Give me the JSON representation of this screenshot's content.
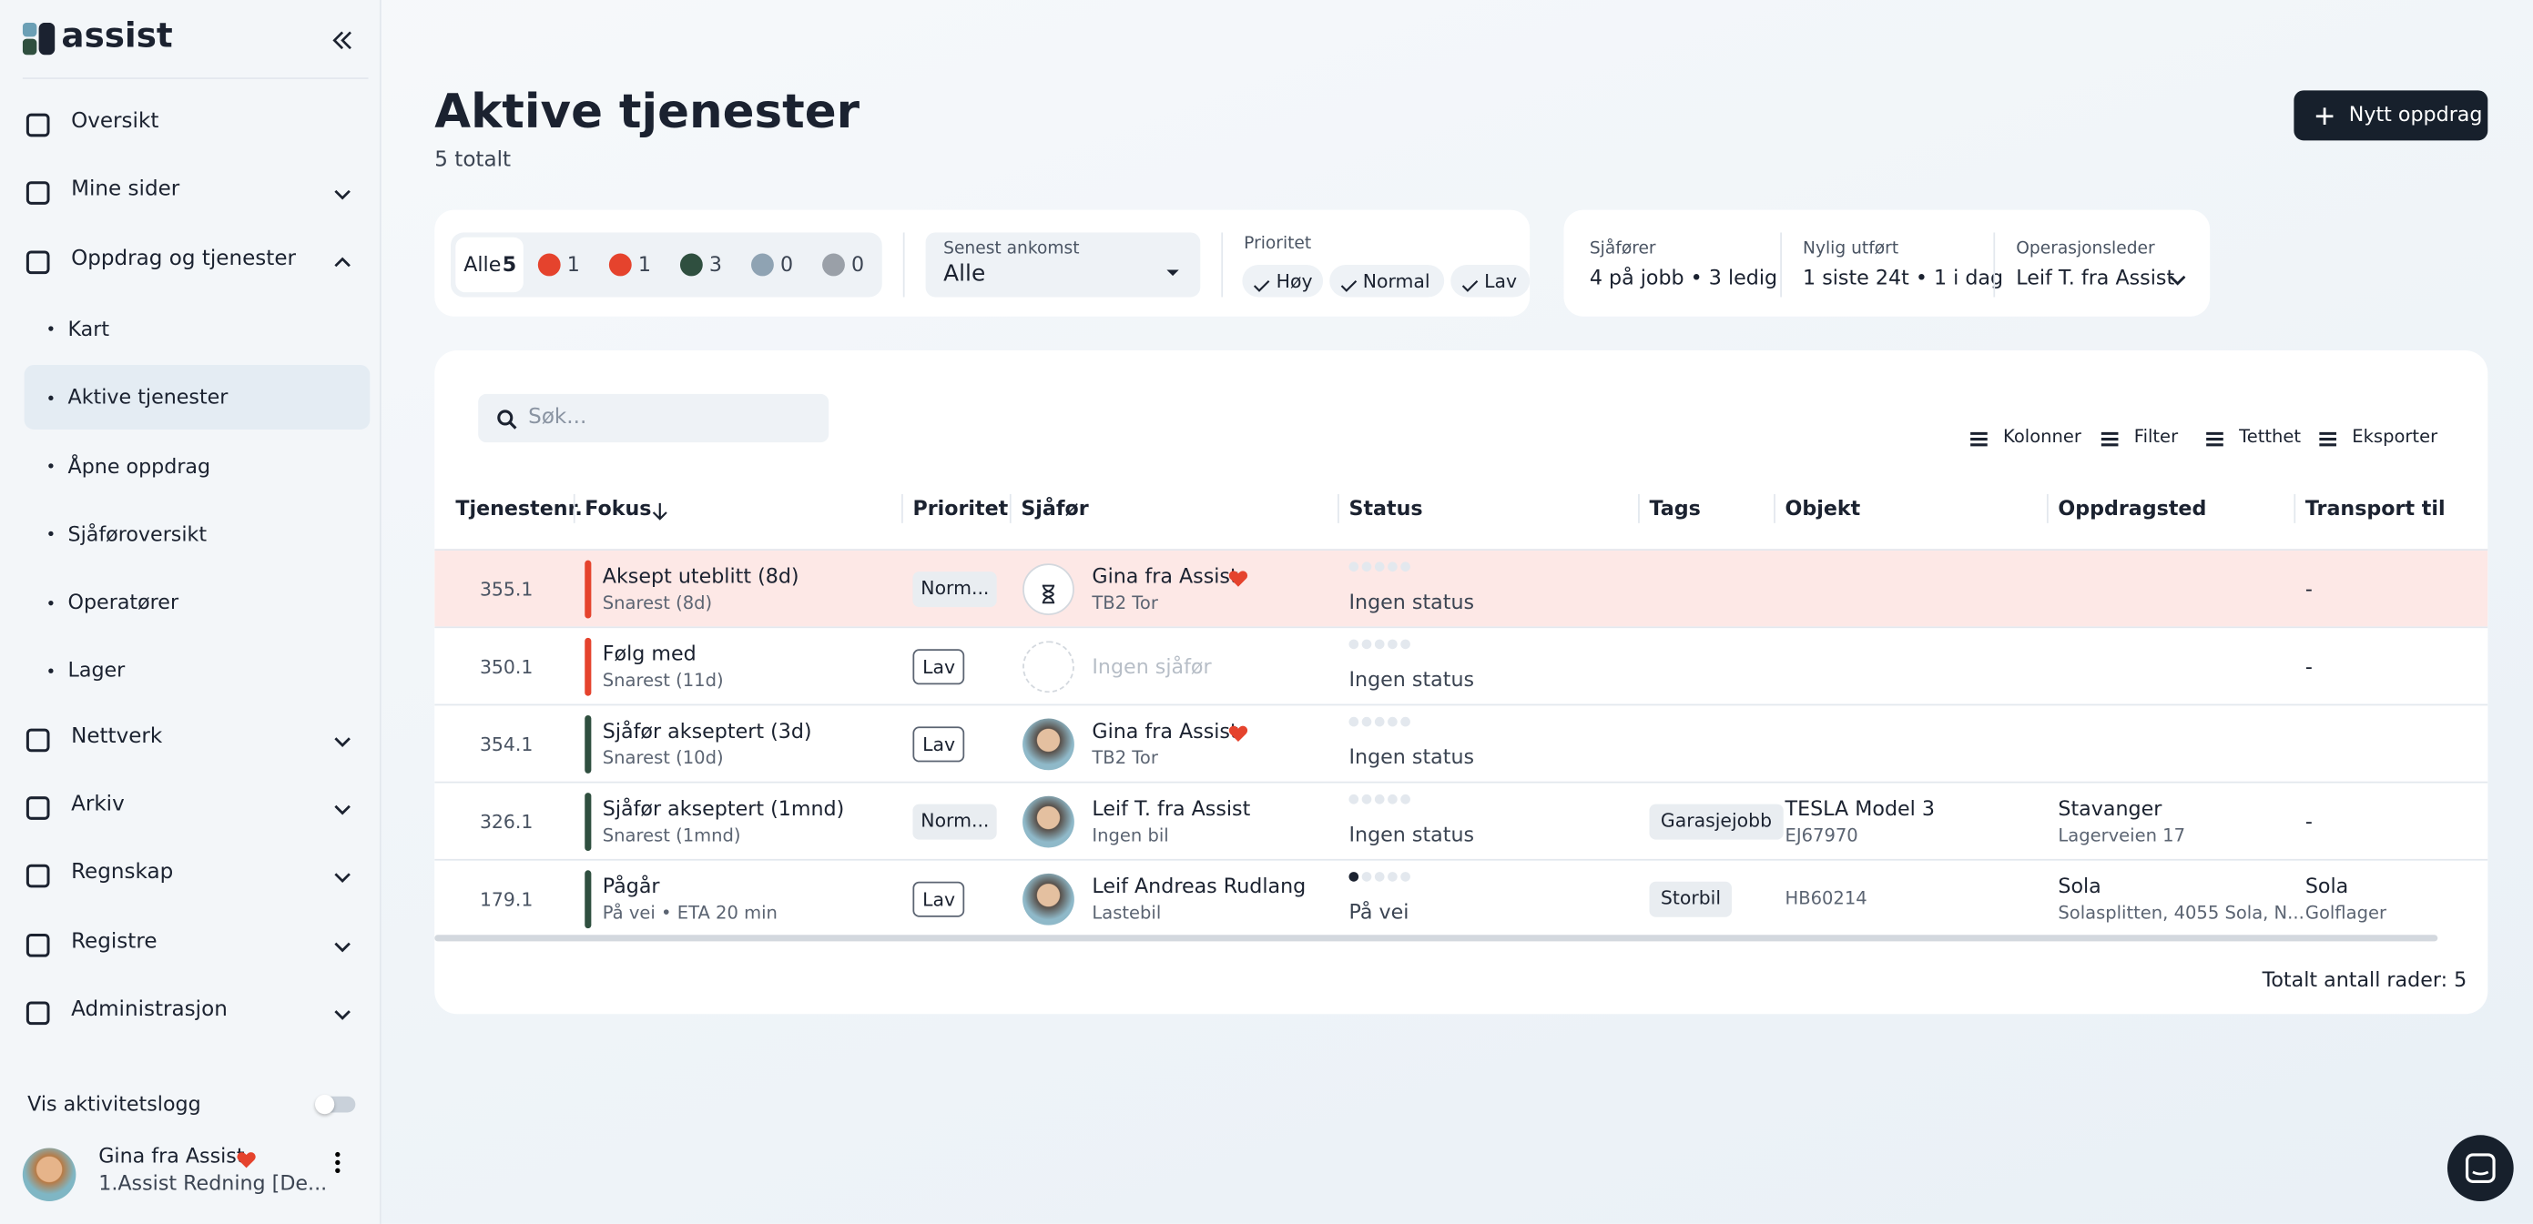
{
  "sidebar": {
    "logo": "assist",
    "nav": [
      {
        "label": "Oversikt"
      },
      {
        "label": "Mine sider",
        "expandable": true
      },
      {
        "label": "Oppdrag og tjenester",
        "expandable": true,
        "expanded": true,
        "children": [
          "Kart",
          "Aktive tjenester",
          "Åpne oppdrag",
          "Sjåføroversikt",
          "Operatører",
          "Lager"
        ],
        "active_child": 1
      },
      {
        "label": "Nettverk",
        "expandable": true
      },
      {
        "label": "Arkiv",
        "expandable": true
      },
      {
        "label": "Regnskap",
        "expandable": true
      },
      {
        "label": "Registre",
        "expandable": true
      },
      {
        "label": "Administrasjon",
        "expandable": true
      }
    ],
    "activity_log": "Vis aktivitetslogg",
    "user": {
      "name": "Gina fra Assist",
      "org": "1.Assist Redning [De..."
    }
  },
  "header": {
    "title": "Aktive tjenester",
    "subtitle": "5 totalt",
    "button": "Nytt oppdrag"
  },
  "filters": {
    "all": {
      "label": "Alle",
      "count": 5
    },
    "counts": [
      {
        "color": "#e5432d",
        "count": 1
      },
      {
        "color": "#e5432d",
        "count": 1
      },
      {
        "color": "#2f4f3f",
        "count": 3
      },
      {
        "color": "#8fa3b3",
        "count": 0
      },
      {
        "color": "#9aa0a8",
        "count": 0
      }
    ],
    "sort": {
      "label": "Senest ankomst",
      "value": "Alle"
    },
    "priority": {
      "label": "Prioritet",
      "options": [
        "Høy",
        "Normal",
        "Lav"
      ]
    }
  },
  "stats": [
    {
      "label": "Sjåfører",
      "value": "4 på jobb • 3 ledig"
    },
    {
      "label": "Nylig utført",
      "value": "1 siste 24t • 1 i dag"
    },
    {
      "label": "Operasjonsleder",
      "value": "Leif T. fra Assist"
    }
  ],
  "toolbar": {
    "search": "Søk...",
    "buttons": [
      "Kolonner",
      "Filter",
      "Tetthet",
      "Eksporter"
    ]
  },
  "table": {
    "columns": [
      "Tjenestenr.",
      "Fokus",
      "Prioritet",
      "Sjåfør",
      "Status",
      "Tags",
      "Objekt",
      "Oppdragsted",
      "Transport til"
    ],
    "rows": [
      {
        "id": "355.1",
        "focus": "Aksept uteblitt (8d)",
        "focus_sub": "Snarest (8d)",
        "focus_color": "#e5432d",
        "highlight": true,
        "priority": "Norm...",
        "avatar": "hourglass",
        "driver": "Gina fra Assist",
        "driver_sub": "TB2 Tor",
        "status_step": 0,
        "status": "Ingen status",
        "transport": "-"
      },
      {
        "id": "350.1",
        "focus": "Følg med",
        "focus_sub": "Snarest (11d)",
        "focus_color": "#e5432d",
        "priority": "Lav",
        "avatar": "empty",
        "driver_none": "Ingen sjåfør",
        "status_step": 0,
        "status": "Ingen status",
        "transport": "-"
      },
      {
        "id": "354.1",
        "focus": "Sjåfør akseptert (3d)",
        "focus_sub": "Snarest (10d)",
        "focus_color": "#2f4f3f",
        "priority": "Lav",
        "avatar": "photo",
        "driver": "Gina fra Assist",
        "driver_sub": "TB2 Tor",
        "status_step": 0,
        "status": "Ingen status"
      },
      {
        "id": "326.1",
        "focus": "Sjåfør akseptert (1mnd)",
        "focus_sub": "Snarest (1mnd)",
        "focus_color": "#2f4f3f",
        "priority": "Norm...",
        "avatar": "photo",
        "driver": "Leif T. fra Assist",
        "driver_sub": "Ingen bil",
        "status_step": 0,
        "status": "Ingen status",
        "tag": "Garasjejobb",
        "object": "TESLA Model 3",
        "object_sub": "EJ67970",
        "place": "Stavanger",
        "place_sub": "Lagerveien 17",
        "transport": "-"
      },
      {
        "id": "179.1",
        "focus": "Pågår",
        "focus_sub": "På vei • ETA 20 min",
        "focus_color": "#2f4f3f",
        "priority": "Lav",
        "avatar": "photo",
        "driver": "Leif Andreas Rudlang",
        "driver_sub": "Lastebil",
        "status_step": 1,
        "status": "På vei",
        "tag": "Storbil",
        "object_sub": "HB60214",
        "place": "Sola",
        "place_sub": "Solasplitten, 4055 Sola, N...",
        "transport": "Sola",
        "transport_sub": "Golflager"
      }
    ],
    "footer": "Totalt antall rader: 5"
  }
}
